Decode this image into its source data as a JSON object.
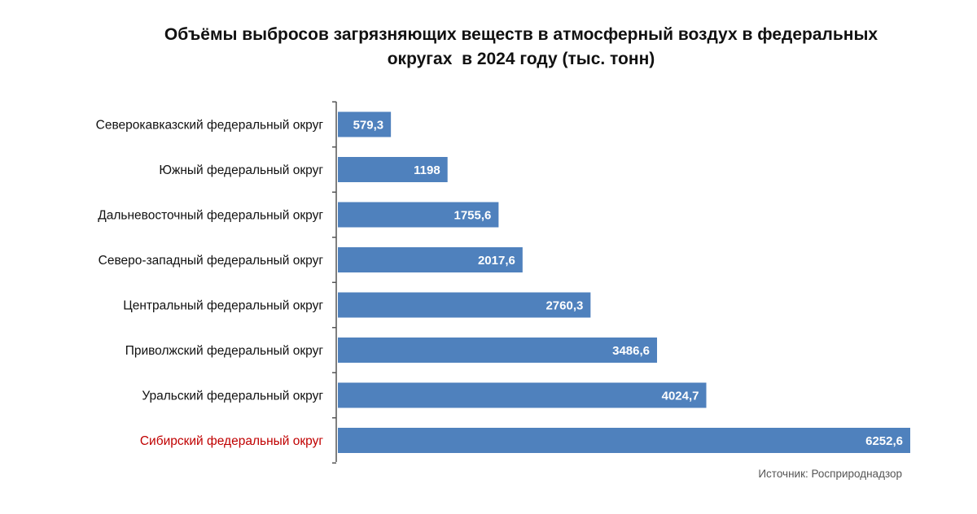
{
  "title": {
    "line1": "Объёмы выбросов загрязняющих веществ в атмосферный воздух в федеральных",
    "line2": "округах  в 2024 году (тыс. тонн)"
  },
  "source": "Источник: Росприроднадзор",
  "colors": {
    "bar": "#4f81bd",
    "highlight_label": "#c00000",
    "label": "#111111",
    "value_label": "#ffffff",
    "axis": "#555555"
  },
  "chart_data": {
    "type": "bar",
    "orientation": "horizontal",
    "title": "Объёмы выбросов загрязняющих веществ в атмосферный воздух в федеральных округах  в 2024 году (тыс. тонн)",
    "categories": [
      "Северокавказский федеральный округ",
      "Южный федеральный округ",
      "Дальневосточный федеральный округ",
      "Северо-западный федеральный округ",
      "Центральный федеральный округ",
      "Приволжский федеральный округ",
      "Уральский федеральный округ",
      "Сибирский федеральный округ"
    ],
    "values": [
      579.3,
      1198,
      1755.6,
      2017.6,
      2760.3,
      3486.6,
      4024.7,
      6252.6
    ],
    "value_labels": [
      "579,3",
      "1198",
      "1755,6",
      "2017,6",
      "2760,3",
      "3486,6",
      "4024,7",
      "6252,6"
    ],
    "highlighted_category": "Сибирский федеральный округ",
    "xlim": [
      0,
      6252.6
    ],
    "xlabel": "",
    "ylabel": "",
    "grid": false,
    "legend": "none"
  }
}
